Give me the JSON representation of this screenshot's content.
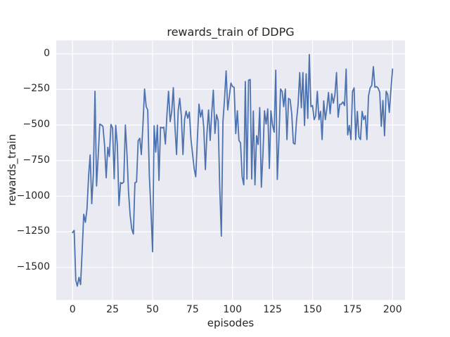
{
  "chart_data": {
    "type": "line",
    "title": "rewards_train of DDPG",
    "xlabel": "episodes",
    "ylabel": "rewards_train",
    "x_ticks": [
      0,
      25,
      50,
      75,
      100,
      125,
      150,
      175,
      200
    ],
    "x_tick_labels": [
      "0",
      "25",
      "50",
      "75",
      "100",
      "125",
      "150",
      "175",
      "200"
    ],
    "y_ticks": [
      0,
      -250,
      -500,
      -750,
      -1000,
      -1250,
      -1500
    ],
    "y_tick_labels": [
      "0",
      "−250",
      "−500",
      "−750",
      "−1000",
      "−1250",
      "−1500"
    ],
    "xlim": [
      -10.2,
      207.8
    ],
    "ylim": [
      -1728,
      94
    ],
    "grid": true,
    "legend": false,
    "axes_bg": "#eaeaf2",
    "grid_color": "#ffffff",
    "text_color": "#262626",
    "line_color": "#4c72b0",
    "x_is_index": true,
    "series": [
      {
        "name": "rewards_train",
        "y": [
          -1255,
          -1240,
          -1590,
          -1631,
          -1570,
          -1620,
          -1380,
          -1126,
          -1183,
          -1091,
          -860,
          -710,
          -1052,
          -845,
          -263,
          -928,
          -721,
          -493,
          -500,
          -510,
          -641,
          -870,
          -657,
          -721,
          -496,
          -520,
          -877,
          -502,
          -640,
          -1066,
          -904,
          -910,
          -900,
          -500,
          -705,
          -969,
          -1134,
          -1230,
          -1265,
          -905,
          -900,
          -610,
          -593,
          -707,
          -500,
          -247,
          -370,
          -394,
          -855,
          -1100,
          -1390,
          -505,
          -690,
          -501,
          -888,
          -515,
          -520,
          -515,
          -633,
          -430,
          -263,
          -476,
          -402,
          -238,
          -509,
          -707,
          -402,
          -312,
          -435,
          -707,
          -460,
          -402,
          -452,
          -410,
          -599,
          -700,
          -805,
          -863,
          -600,
          -353,
          -444,
          -394,
          -518,
          -813,
          -560,
          -394,
          -608,
          -411,
          -255,
          -559,
          -427,
          -470,
          -937,
          -1280,
          -476,
          -312,
          -120,
          -394,
          -296,
          -205,
          -230,
          -235,
          -560,
          -400,
          -608,
          -625,
          -863,
          -920,
          -195,
          -879,
          -185,
          -180,
          -879,
          -402,
          -920,
          -575,
          -636,
          -378,
          -937,
          -700,
          -400,
          -493,
          -387,
          -805,
          -400,
          -500,
          -550,
          -115,
          -882,
          -602,
          -247,
          -264,
          -371,
          -247,
          -602,
          -313,
          -321,
          -420,
          -626,
          -634,
          -470,
          -354,
          -132,
          -379,
          -132,
          -503,
          -140,
          -453,
          -5,
          -371,
          -363,
          -462,
          -435,
          -264,
          -462,
          -404,
          -602,
          -330,
          -462,
          -379,
          -272,
          -420,
          -280,
          -346,
          -288,
          -132,
          -445,
          -354,
          -354,
          -338,
          -363,
          -107,
          -569,
          -503,
          -602,
          -264,
          -239,
          -602,
          -404,
          -585,
          -602,
          -404,
          -462,
          -435,
          -602,
          -297,
          -239,
          -222,
          -90,
          -235,
          -230,
          -240,
          -272,
          -509,
          -328,
          -575,
          -263,
          -287,
          -411,
          -250,
          -107
        ]
      }
    ]
  }
}
